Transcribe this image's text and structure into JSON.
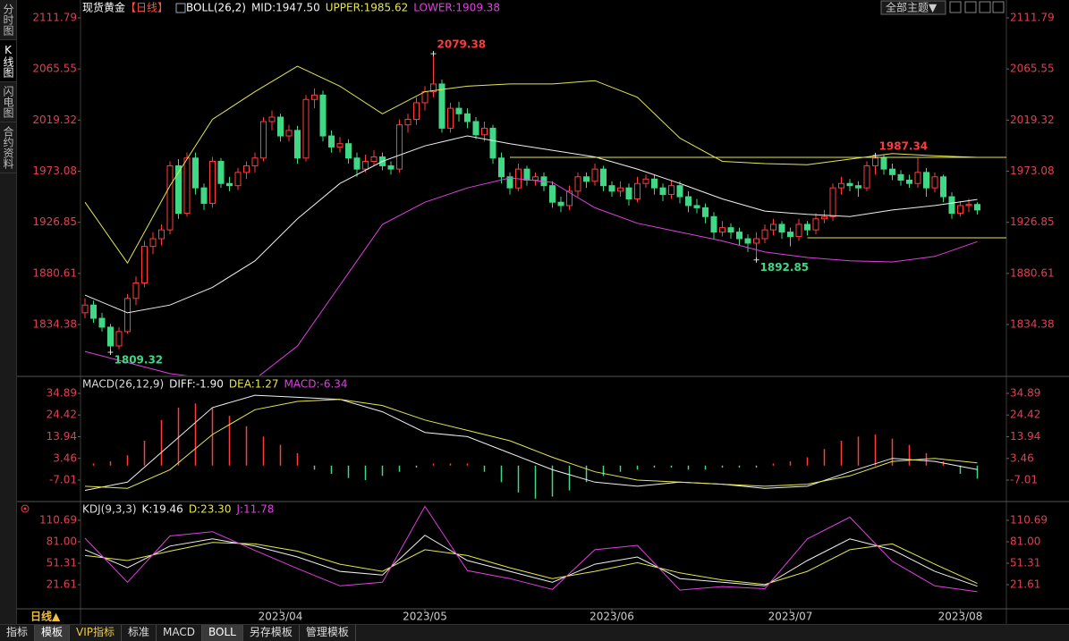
{
  "ui": {
    "sidebar": [
      "分时图",
      "K线图",
      "闪电图",
      "合约资料"
    ],
    "theme_button": "全部主题▼",
    "period_button": "日线▲",
    "bottom_tabs": [
      "指标",
      "模板",
      "VIP指标",
      "标准",
      "MACD",
      "BOLL",
      "另存模板",
      "管理模板"
    ]
  },
  "chart_data": [
    {
      "type": "candlestick",
      "title": "现货黄金",
      "period": "【日线】",
      "indicator": "BOLL(26,2)",
      "ylim": [
        1788.28,
        2119.88
      ],
      "yticks": [
        2111.79,
        2065.55,
        2019.32,
        1973.08,
        1926.85,
        1880.61,
        1834.38
      ],
      "up_color": "#ff3c3c",
      "down_color": "#3fd884",
      "ohlc": [
        [
          1845,
          1858,
          1840,
          1852
        ],
        [
          1852,
          1856,
          1836,
          1840
        ],
        [
          1840,
          1845,
          1828,
          1832
        ],
        [
          1832,
          1835,
          1809.32,
          1815
        ],
        [
          1815,
          1832,
          1812,
          1828
        ],
        [
          1828,
          1862,
          1826,
          1858
        ],
        [
          1858,
          1878,
          1852,
          1872
        ],
        [
          1872,
          1910,
          1868,
          1905
        ],
        [
          1905,
          1918,
          1898,
          1912
        ],
        [
          1912,
          1925,
          1906,
          1920
        ],
        [
          1920,
          1982,
          1916,
          1978
        ],
        [
          1978,
          1984,
          1930,
          1935
        ],
        [
          1935,
          1990,
          1932,
          1985
        ],
        [
          1985,
          1990,
          1952,
          1958
        ],
        [
          1958,
          1962,
          1938,
          1944
        ],
        [
          1944,
          1986,
          1940,
          1982
        ],
        [
          1982,
          1985,
          1958,
          1962
        ],
        [
          1962,
          1968,
          1955,
          1960
        ],
        [
          1960,
          1976,
          1956,
          1972
        ],
        [
          1972,
          1982,
          1966,
          1978
        ],
        [
          1978,
          1990,
          1972,
          1985
        ],
        [
          1985,
          2022,
          1982,
          2018
        ],
        [
          2018,
          2028,
          2010,
          2022
        ],
        [
          2022,
          2025,
          2000,
          2005
        ],
        [
          2005,
          2015,
          2000,
          2010
        ],
        [
          2010,
          2014,
          1980,
          1985
        ],
        [
          1985,
          2042,
          1982,
          2038
        ],
        [
          2038,
          2048,
          2030,
          2042
        ],
        [
          2042,
          2046,
          2000,
          2005
        ],
        [
          2005,
          2010,
          1990,
          1995
        ],
        [
          1995,
          2004,
          1990,
          1998
        ],
        [
          1998,
          2002,
          1980,
          1985
        ],
        [
          1985,
          1990,
          1968,
          1975
        ],
        [
          1975,
          1988,
          1972,
          1982
        ],
        [
          1982,
          1992,
          1978,
          1986
        ],
        [
          1986,
          1990,
          1974,
          1978
        ],
        [
          1978,
          1982,
          1970,
          1975
        ],
        [
          1975,
          2020,
          1972,
          2015
        ],
        [
          2015,
          2025,
          2008,
          2020
        ],
        [
          2020,
          2040,
          2015,
          2035
        ],
        [
          2035,
          2050,
          2028,
          2045
        ],
        [
          2045,
          2079.38,
          2040,
          2052
        ],
        [
          2052,
          2056,
          2008,
          2012
        ],
        [
          2012,
          2035,
          2008,
          2030
        ],
        [
          2030,
          2036,
          2018,
          2025
        ],
        [
          2025,
          2030,
          2012,
          2018
        ],
        [
          2018,
          2022,
          2002,
          2006
        ],
        [
          2006,
          2018,
          2000,
          2012
        ],
        [
          2012,
          2015,
          1980,
          1985
        ],
        [
          1985,
          1990,
          1962,
          1968
        ],
        [
          1968,
          1972,
          1952,
          1958
        ],
        [
          1958,
          1980,
          1955,
          1975
        ],
        [
          1975,
          1978,
          1960,
          1965
        ],
        [
          1965,
          1972,
          1960,
          1968
        ],
        [
          1968,
          1972,
          1955,
          1960
        ],
        [
          1960,
          1964,
          1940,
          1945
        ],
        [
          1945,
          1950,
          1936,
          1942
        ],
        [
          1942,
          1960,
          1938,
          1955
        ],
        [
          1955,
          1972,
          1950,
          1968
        ],
        [
          1968,
          1972,
          1958,
          1964
        ],
        [
          1964,
          1980,
          1960,
          1975
        ],
        [
          1975,
          1978,
          1955,
          1960
        ],
        [
          1960,
          1964,
          1950,
          1955
        ],
        [
          1955,
          1964,
          1950,
          1958
        ],
        [
          1958,
          1962,
          1942,
          1948
        ],
        [
          1948,
          1968,
          1945,
          1962
        ],
        [
          1962,
          1970,
          1958,
          1966
        ],
        [
          1966,
          1970,
          1952,
          1958
        ],
        [
          1958,
          1962,
          1946,
          1952
        ],
        [
          1952,
          1965,
          1948,
          1960
        ],
        [
          1960,
          1964,
          1944,
          1950
        ],
        [
          1950,
          1955,
          1936,
          1942
        ],
        [
          1942,
          1948,
          1935,
          1940
        ],
        [
          1940,
          1944,
          1926,
          1932
        ],
        [
          1932,
          1936,
          1912,
          1918
        ],
        [
          1918,
          1928,
          1914,
          1922
        ],
        [
          1922,
          1926,
          1912,
          1918
        ],
        [
          1918,
          1922,
          1906,
          1912
        ],
        [
          1912,
          1916,
          1900,
          1908
        ],
        [
          1908,
          1918,
          1892.85,
          1912
        ],
        [
          1912,
          1925,
          1908,
          1920
        ],
        [
          1920,
          1930,
          1915,
          1925
        ],
        [
          1925,
          1928,
          1912,
          1918
        ],
        [
          1918,
          1922,
          1905,
          1914
        ],
        [
          1914,
          1930,
          1910,
          1925
        ],
        [
          1925,
          1928,
          1915,
          1920
        ],
        [
          1920,
          1935,
          1916,
          1930
        ],
        [
          1930,
          1938,
          1926,
          1932
        ],
        [
          1932,
          1962,
          1928,
          1958
        ],
        [
          1958,
          1968,
          1952,
          1962
        ],
        [
          1962,
          1966,
          1955,
          1960
        ],
        [
          1960,
          1964,
          1950,
          1958
        ],
        [
          1958,
          1982,
          1955,
          1978
        ],
        [
          1978,
          1987.34,
          1970,
          1985
        ],
        [
          1985,
          1988,
          1970,
          1975
        ],
        [
          1975,
          1980,
          1965,
          1970
        ],
        [
          1970,
          1974,
          1960,
          1965
        ],
        [
          1965,
          1970,
          1958,
          1962
        ],
        [
          1962,
          1985,
          1958,
          1972
        ],
        [
          1972,
          1976,
          1950,
          1958
        ],
        [
          1958,
          1972,
          1954,
          1968
        ],
        [
          1968,
          1970,
          1945,
          1950
        ],
        [
          1950,
          1954,
          1930,
          1935
        ],
        [
          1935,
          1946,
          1932,
          1942
        ],
        [
          1942,
          1948,
          1936,
          1943
        ],
        [
          1943,
          1945,
          1934,
          1938
        ]
      ],
      "x": [
        0,
        5,
        10,
        15,
        20,
        25,
        30,
        35,
        40,
        45,
        50,
        55,
        60,
        65,
        70,
        75,
        80,
        85,
        90,
        95,
        100,
        105
      ],
      "series": [
        {
          "label": "MID:1947.50",
          "color": "#f0f0f0",
          "values": [
            1861,
            1845,
            1852,
            1868,
            1892,
            1930,
            1962,
            1982,
            1996,
            2005,
            1998,
            1992,
            1986,
            1975,
            1962,
            1948,
            1937,
            1934,
            1932,
            1938,
            1942,
            1947.5
          ]
        },
        {
          "label": "UPPER:1985.62",
          "color": "#e6e650",
          "values": [
            1945,
            1890,
            1960,
            2020,
            2045,
            2068,
            2050,
            2025,
            2045,
            2050,
            2052,
            2052,
            2055,
            2040,
            2003,
            1982,
            1980,
            1979,
            1984,
            1989,
            1987,
            1985.62
          ]
        },
        {
          "label": "LOWER:1909.38",
          "color": "#e040e0",
          "values": [
            1810,
            1800,
            1790,
            1785,
            1785,
            1815,
            1870,
            1925,
            1945,
            1958,
            1967,
            1963,
            1940,
            1926,
            1918,
            1910,
            1900,
            1895,
            1892,
            1891,
            1896,
            1909.38
          ]
        }
      ],
      "levels": [
        {
          "value": 1985.6,
          "start": 50
        },
        {
          "value": 1912.8,
          "start": 85
        }
      ],
      "level_color": "#e6e650",
      "highlights": [
        {
          "index": 41,
          "field": 1
        },
        {
          "index": 3,
          "field": 2
        },
        {
          "index": 79,
          "field": 2
        },
        {
          "index": 93,
          "field": 1
        }
      ],
      "x_labels": [
        {
          "index": 23,
          "label": "2023/04"
        },
        {
          "index": 40,
          "label": "2023/05"
        },
        {
          "index": 62,
          "label": "2023/06"
        },
        {
          "index": 83,
          "label": "2023/07"
        },
        {
          "index": 103,
          "label": "2023/08"
        }
      ]
    },
    {
      "type": "macd",
      "title": "MACD(26,12,9)",
      "ylim": [
        -16.95,
        42.23
      ],
      "yticks": [
        34.89,
        24.42,
        13.94,
        3.46,
        -7.01
      ],
      "x": [
        0,
        5,
        10,
        15,
        20,
        25,
        30,
        35,
        40,
        45,
        50,
        55,
        60,
        65,
        70,
        75,
        80,
        85,
        90,
        95,
        100,
        105
      ],
      "series": [
        {
          "label": "DIFF:-1.90",
          "color": "#f0f0f0",
          "values": [
            -12,
            -8,
            10,
            28,
            34,
            33,
            32,
            26,
            16,
            14,
            6,
            -2,
            -8,
            -10,
            -8,
            -9,
            -11,
            -10,
            -3,
            3.5,
            2,
            -1.9
          ]
        },
        {
          "label": "DEA:1.27",
          "color": "#e6e650",
          "values": [
            -10,
            -11,
            -2,
            15,
            27,
            31,
            32,
            29,
            22,
            17,
            12,
            4,
            -3,
            -7,
            -8,
            -9,
            -10,
            -9,
            -5,
            2,
            3.5,
            1.27
          ]
        }
      ],
      "hist_label": "MACD:-6.34",
      "hist_label_color": "#e040e0",
      "hist_up_color": "#ff3c3c",
      "hist_down_color": "#3fd884",
      "hist_x": [
        1,
        3,
        5,
        7,
        9,
        11,
        13,
        15,
        17,
        19,
        21,
        23,
        25,
        27,
        29,
        31,
        33,
        35,
        37,
        39,
        41,
        43,
        45,
        47,
        49,
        51,
        53,
        55,
        57,
        59,
        61,
        63,
        65,
        67,
        69,
        71,
        73,
        75,
        77,
        79,
        81,
        83,
        85,
        87,
        89,
        91,
        93,
        95,
        97,
        99,
        101,
        103,
        105
      ],
      "hist_values": [
        1,
        2,
        5,
        12,
        22,
        28,
        30,
        28,
        24,
        19,
        14,
        10,
        6,
        -2,
        -4,
        -6,
        -7,
        -5,
        -3,
        -1,
        1,
        1,
        1,
        -3,
        -8,
        -13,
        -16,
        -15,
        -12,
        -8,
        -5,
        -3,
        -2,
        -1,
        -1,
        -2,
        -2,
        -1,
        -1,
        -1,
        1,
        2,
        4,
        8,
        12,
        14,
        15,
        13,
        10,
        6,
        2,
        -4,
        -6.34
      ]
    },
    {
      "type": "kdj",
      "title": "KDJ(9,3,3)",
      "ylim": [
        -10.56,
        134.2
      ],
      "yticks": [
        110.69,
        {
          "value": 81,
          "label": "81.00"
        },
        51.31,
        21.61
      ],
      "x": [
        0,
        5,
        10,
        15,
        20,
        25,
        30,
        35,
        40,
        45,
        50,
        55,
        60,
        65,
        70,
        75,
        80,
        85,
        90,
        95,
        100,
        105
      ],
      "series": [
        {
          "label": "K:19.46",
          "color": "#f0f0f0",
          "values": [
            70,
            45,
            75,
            85,
            75,
            60,
            40,
            35,
            90,
            55,
            40,
            25,
            50,
            60,
            30,
            25,
            20,
            55,
            85,
            70,
            40,
            19.46
          ]
        },
        {
          "label": "D:23.30",
          "color": "#e6e650",
          "values": [
            62,
            55,
            68,
            80,
            78,
            68,
            50,
            40,
            70,
            62,
            45,
            30,
            40,
            52,
            38,
            28,
            22,
            40,
            70,
            78,
            50,
            23.3
          ]
        },
        {
          "label": "J:11.78",
          "color": "#e040e0",
          "values": [
            86,
            25,
            89,
            95,
            69,
            44,
            20,
            25,
            130,
            41,
            30,
            15,
            70,
            76,
            14,
            19,
            16,
            85,
            115,
            54,
            20,
            11.78
          ]
        }
      ]
    }
  ]
}
